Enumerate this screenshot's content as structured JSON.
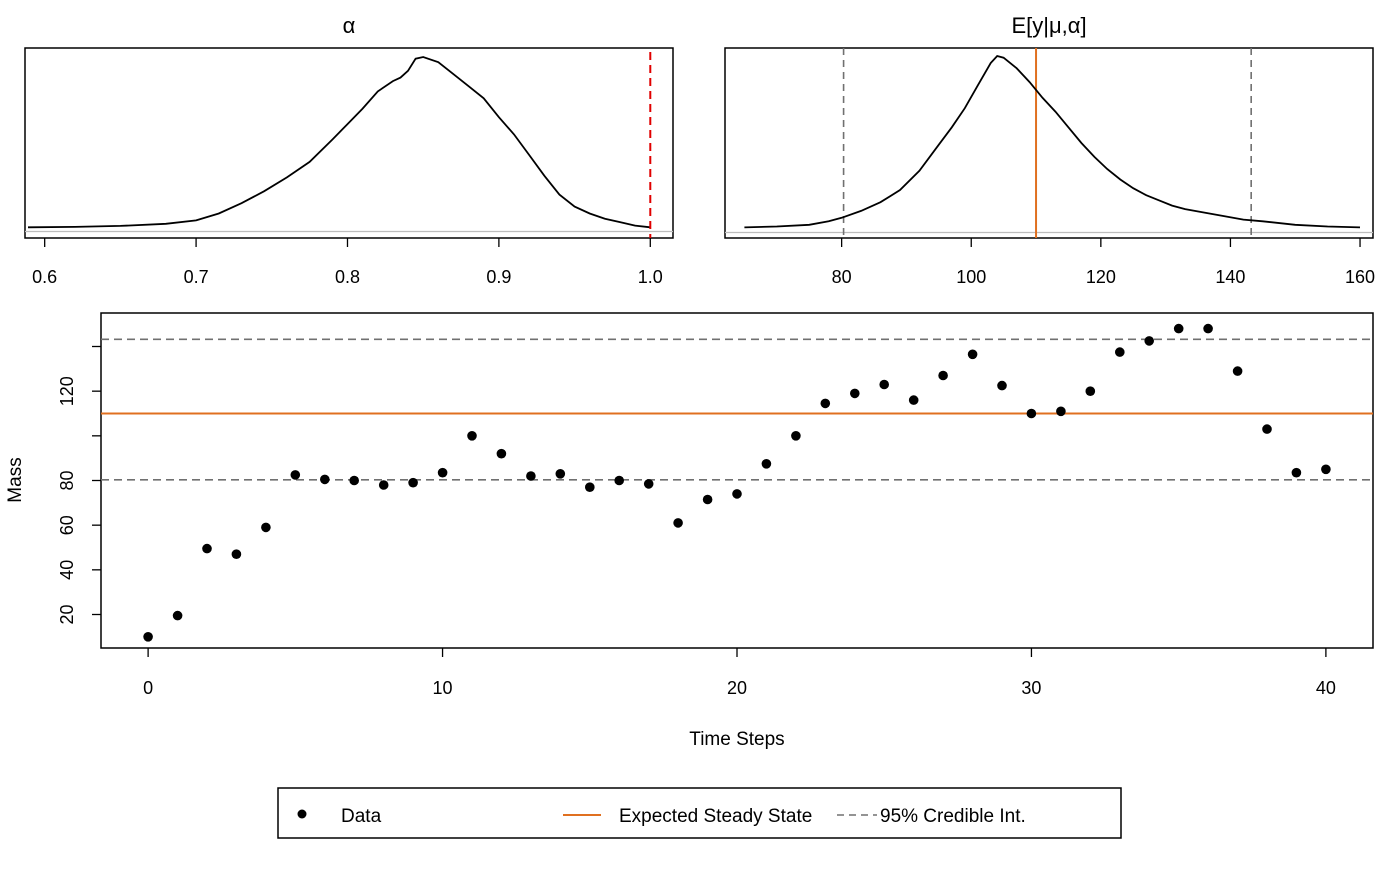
{
  "chart_data": [
    {
      "type": "line",
      "title": "α",
      "xlim": [
        0.587,
        1.015
      ],
      "xticks": [
        "0.6",
        "0.7",
        "0.8",
        "0.9",
        "1.0"
      ],
      "xtick_values": [
        0.6,
        0.7,
        0.8,
        0.9,
        1.0
      ],
      "reference_line": {
        "x": 1.0,
        "style": "dashed",
        "color": "#e00000"
      },
      "density_curve": {
        "x": [
          0.589,
          0.62,
          0.65,
          0.68,
          0.7,
          0.715,
          0.73,
          0.745,
          0.76,
          0.775,
          0.79,
          0.8,
          0.81,
          0.82,
          0.83,
          0.835,
          0.84,
          0.845,
          0.85,
          0.86,
          0.87,
          0.88,
          0.89,
          0.9,
          0.91,
          0.92,
          0.93,
          0.94,
          0.95,
          0.96,
          0.97,
          0.98,
          0.99,
          1.0
        ],
        "y": [
          0.01,
          0.012,
          0.018,
          0.03,
          0.05,
          0.09,
          0.15,
          0.22,
          0.3,
          0.39,
          0.52,
          0.61,
          0.7,
          0.8,
          0.86,
          0.88,
          0.92,
          0.99,
          1.0,
          0.97,
          0.9,
          0.83,
          0.76,
          0.65,
          0.55,
          0.43,
          0.31,
          0.2,
          0.13,
          0.09,
          0.06,
          0.04,
          0.02,
          0.01
        ]
      }
    },
    {
      "type": "line",
      "title": "E[y|μ,α]",
      "xlim": [
        62,
        162
      ],
      "xticks": [
        "80",
        "100",
        "120",
        "140",
        "160"
      ],
      "xtick_values": [
        80,
        100,
        120,
        140,
        160
      ],
      "credible_interval": [
        80.3,
        143.2
      ],
      "expected_value": 110.0,
      "density_curve": {
        "x": [
          65,
          70,
          75,
          78,
          80,
          83,
          86,
          89,
          92,
          95,
          97,
          99,
          101,
          103,
          104,
          105,
          107,
          109,
          111,
          113,
          115,
          117,
          119,
          121,
          123,
          125,
          127,
          129,
          131,
          133,
          136,
          139,
          142,
          145,
          150,
          155,
          160
        ],
        "y": [
          0.015,
          0.02,
          0.03,
          0.05,
          0.07,
          0.11,
          0.16,
          0.23,
          0.34,
          0.49,
          0.59,
          0.7,
          0.83,
          0.96,
          1.0,
          0.99,
          0.93,
          0.85,
          0.76,
          0.68,
          0.59,
          0.5,
          0.42,
          0.35,
          0.29,
          0.24,
          0.2,
          0.17,
          0.14,
          0.12,
          0.1,
          0.08,
          0.06,
          0.05,
          0.03,
          0.02,
          0.015
        ]
      }
    },
    {
      "type": "scatter",
      "xlabel": "Time Steps",
      "ylabel": "Mass",
      "xlim": [
        -1.6,
        41.6
      ],
      "ylim": [
        5,
        155
      ],
      "xticks": [
        "0",
        "10",
        "20",
        "30",
        "40"
      ],
      "xtick_values": [
        0,
        10,
        20,
        30,
        40
      ],
      "yticks": [
        "20",
        "40",
        "60",
        "80",
        "120"
      ],
      "ytick_values": [
        20,
        40,
        60,
        80,
        120
      ],
      "yticks_unlabeled": [
        100,
        140
      ],
      "expected_steady_state": 110.0,
      "credible_interval": [
        80.3,
        143.2
      ],
      "series": [
        {
          "name": "Data",
          "x": [
            0,
            1,
            2,
            3,
            4,
            5,
            6,
            7,
            8,
            9,
            10,
            11,
            12,
            13,
            14,
            15,
            16,
            17,
            18,
            19,
            20,
            21,
            22,
            23,
            24,
            25,
            26,
            27,
            28,
            29,
            30,
            31,
            32,
            33,
            34,
            35,
            36,
            37,
            38,
            39,
            40
          ],
          "y": [
            10,
            19.5,
            49.5,
            47,
            59,
            82.5,
            80.5,
            80,
            78,
            79,
            83.5,
            100,
            92,
            82,
            83,
            77,
            80,
            78.5,
            61,
            71.5,
            74,
            87.5,
            100,
            114.5,
            119,
            123,
            116,
            127,
            136.5,
            122.5,
            110,
            111,
            120,
            137.5,
            142.5,
            148,
            148,
            129,
            103,
            83.5,
            85
          ]
        }
      ]
    }
  ],
  "legend": {
    "items": [
      {
        "label": "Data",
        "kind": "point",
        "color": "#000000"
      },
      {
        "label": "Expected Steady State",
        "kind": "line",
        "color": "#e07020"
      },
      {
        "label": "95% Credible Int.",
        "kind": "dashed-line",
        "color": "#707070"
      }
    ]
  },
  "colors": {
    "orange": "#e07020",
    "gray_dashed": "#707070",
    "red_dashed": "#e00000",
    "baseline": "#bdbdbd"
  }
}
